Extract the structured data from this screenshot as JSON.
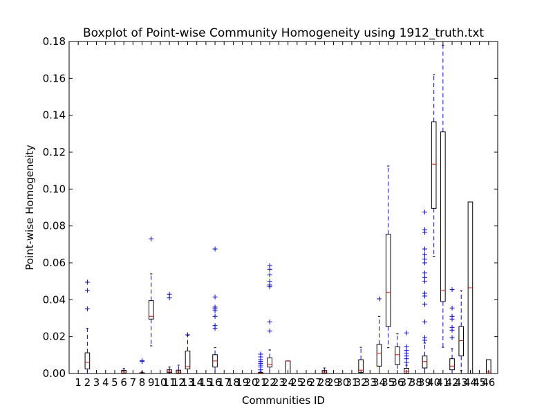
{
  "chart_data": {
    "type": "boxplot",
    "title": "Boxplot of Point-wise Community Homogeneity using 1912_truth.txt",
    "xlabel": "Communities ID",
    "ylabel": "Point-wise Homogeneity",
    "ylim": [
      0,
      0.18
    ],
    "yticks": [
      "0.00",
      "0.02",
      "0.04",
      "0.06",
      "0.08",
      "0.10",
      "0.12",
      "0.14",
      "0.16",
      "0.18"
    ],
    "categories": [
      "1",
      "2",
      "3",
      "4",
      "5",
      "6",
      "7",
      "8",
      "9",
      "10",
      "11",
      "12",
      "13",
      "14",
      "15",
      "16",
      "17",
      "18",
      "19",
      "20",
      "21",
      "22",
      "23",
      "24",
      "25",
      "26",
      "27",
      "28",
      "29",
      "30",
      "31",
      "32",
      "33",
      "34",
      "35",
      "36",
      "37",
      "38",
      "39",
      "40",
      "41",
      "42",
      "43",
      "44",
      "45",
      "46"
    ],
    "box_color": "#000000",
    "median_color": "#ff0000",
    "whisker_color": "#0000ff",
    "flier_color": "#0000ff",
    "boxes": [
      {
        "id": "1",
        "whislo": 0,
        "q1": 0,
        "med": 0,
        "q3": 0,
        "whishi": 0,
        "fliers": []
      },
      {
        "id": "2",
        "whislo": 0,
        "q1": 0.0025,
        "med": 0.006,
        "q3": 0.0112,
        "whishi": 0.0245,
        "fliers": [
          0.035,
          0.045,
          0.0495
        ]
      },
      {
        "id": "3",
        "whislo": 0,
        "q1": 0,
        "med": 0,
        "q3": 0,
        "whishi": 0,
        "fliers": []
      },
      {
        "id": "4",
        "whislo": 0,
        "q1": 0,
        "med": 0,
        "q3": 0,
        "whishi": 0,
        "fliers": []
      },
      {
        "id": "5",
        "whislo": 0,
        "q1": 0,
        "med": 0,
        "q3": 0,
        "whishi": 0,
        "fliers": []
      },
      {
        "id": "6",
        "whislo": 0,
        "q1": 0.0002,
        "med": 0.0008,
        "q3": 0.0017,
        "whishi": 0.0027,
        "fliers": []
      },
      {
        "id": "7",
        "whislo": 0,
        "q1": 0,
        "med": 0,
        "q3": 0,
        "whishi": 0,
        "fliers": []
      },
      {
        "id": "8",
        "whislo": 0,
        "q1": 0,
        "med": 0.0001,
        "q3": 0.0004,
        "whishi": 0.0008,
        "fliers": [
          0.0065,
          0.007
        ]
      },
      {
        "id": "9",
        "whislo": 0.015,
        "q1": 0.0295,
        "med": 0.031,
        "q3": 0.0395,
        "whishi": 0.054,
        "fliers": [
          0.073
        ]
      },
      {
        "id": "10",
        "whislo": 0,
        "q1": 0,
        "med": 0,
        "q3": 0,
        "whishi": 0,
        "fliers": []
      },
      {
        "id": "11",
        "whislo": 0,
        "q1": 0.0005,
        "med": 0.0012,
        "q3": 0.002,
        "whishi": 0.0035,
        "fliers": [
          0.041,
          0.043
        ]
      },
      {
        "id": "12",
        "whislo": 0,
        "q1": 0.0002,
        "med": 0.0008,
        "q3": 0.0018,
        "whishi": 0.0045,
        "fliers": []
      },
      {
        "id": "13",
        "whislo": 0,
        "q1": 0.0025,
        "med": 0.0038,
        "q3": 0.0122,
        "whishi": 0.0205,
        "fliers": [
          0.021
        ]
      },
      {
        "id": "14",
        "whislo": 0,
        "q1": 0,
        "med": 0,
        "q3": 0,
        "whishi": 0,
        "fliers": []
      },
      {
        "id": "15",
        "whislo": 0,
        "q1": 0,
        "med": 0,
        "q3": 0,
        "whishi": 0,
        "fliers": []
      },
      {
        "id": "16",
        "whislo": 0,
        "q1": 0.0035,
        "med": 0.0068,
        "q3": 0.0102,
        "whishi": 0.014,
        "fliers": [
          0.0245,
          0.026,
          0.031,
          0.034,
          0.035,
          0.036,
          0.0415,
          0.0675
        ]
      },
      {
        "id": "17",
        "whislo": 0,
        "q1": 0,
        "med": 0,
        "q3": 0,
        "whishi": 0,
        "fliers": []
      },
      {
        "id": "18",
        "whislo": 0,
        "q1": 0,
        "med": 0,
        "q3": 0,
        "whishi": 0,
        "fliers": []
      },
      {
        "id": "19",
        "whislo": 0,
        "q1": 0,
        "med": 0,
        "q3": 0,
        "whishi": 0,
        "fliers": []
      },
      {
        "id": "20",
        "whislo": 0,
        "q1": 0,
        "med": 0,
        "q3": 0,
        "whishi": 0,
        "fliers": []
      },
      {
        "id": "21",
        "whislo": 0,
        "q1": 0,
        "med": 0.0002,
        "q3": 0.0006,
        "whishi": 0.0012,
        "fliers": [
          0.002,
          0.0035,
          0.0045,
          0.0055,
          0.0065,
          0.0075,
          0.009,
          0.0105
        ]
      },
      {
        "id": "22",
        "whislo": 0,
        "q1": 0.0035,
        "med": 0.0048,
        "q3": 0.0085,
        "whishi": 0.0128,
        "fliers": [
          0.023,
          0.028,
          0.047,
          0.048,
          0.05,
          0.0535,
          0.0565,
          0.0585
        ]
      },
      {
        "id": "23",
        "whislo": 0,
        "q1": 0,
        "med": 0,
        "q3": 0,
        "whishi": 0,
        "fliers": []
      },
      {
        "id": "24",
        "whislo": 0,
        "q1": 0,
        "med": 0.0068,
        "q3": 0.0068,
        "whishi": 0.0068,
        "fliers": []
      },
      {
        "id": "25",
        "whislo": 0,
        "q1": 0,
        "med": 0,
        "q3": 0,
        "whishi": 0,
        "fliers": []
      },
      {
        "id": "26",
        "whislo": 0,
        "q1": 0,
        "med": 0,
        "q3": 0,
        "whishi": 0,
        "fliers": []
      },
      {
        "id": "27",
        "whislo": 0,
        "q1": 0,
        "med": 0,
        "q3": 0,
        "whishi": 0,
        "fliers": []
      },
      {
        "id": "28",
        "whislo": 0,
        "q1": 0.0002,
        "med": 0.0008,
        "q3": 0.0016,
        "whishi": 0.003,
        "fliers": []
      },
      {
        "id": "29",
        "whislo": 0,
        "q1": 0,
        "med": 0,
        "q3": 0,
        "whishi": 0,
        "fliers": []
      },
      {
        "id": "30",
        "whislo": 0,
        "q1": 0,
        "med": 0,
        "q3": 0,
        "whishi": 0,
        "fliers": []
      },
      {
        "id": "31",
        "whislo": 0,
        "q1": 0,
        "med": 0,
        "q3": 0,
        "whishi": 0,
        "fliers": []
      },
      {
        "id": "32",
        "whislo": 0,
        "q1": 0.0005,
        "med": 0.0018,
        "q3": 0.0075,
        "whishi": 0.0142,
        "fliers": []
      },
      {
        "id": "33",
        "whislo": 0,
        "q1": 0,
        "med": 0,
        "q3": 0,
        "whishi": 0,
        "fliers": []
      },
      {
        "id": "34",
        "whislo": 0,
        "q1": 0.004,
        "med": 0.011,
        "q3": 0.0158,
        "whishi": 0.031,
        "fliers": [
          0.0405
        ]
      },
      {
        "id": "35",
        "whislo": 0.014,
        "q1": 0.0255,
        "med": 0.044,
        "q3": 0.0755,
        "whishi": 0.1125,
        "fliers": []
      },
      {
        "id": "36",
        "whislo": 0,
        "q1": 0.0048,
        "med": 0.0102,
        "q3": 0.0145,
        "whishi": 0.0215,
        "fliers": []
      },
      {
        "id": "37",
        "whislo": 0,
        "q1": 0.0002,
        "med": 0.0012,
        "q3": 0.0028,
        "whishi": 0.0045,
        "fliers": [
          0.006,
          0.008,
          0.0095,
          0.011,
          0.0125,
          0.0145,
          0.022
        ]
      },
      {
        "id": "38",
        "whislo": 0,
        "q1": 0,
        "med": 0,
        "q3": 0,
        "whishi": 0,
        "fliers": []
      },
      {
        "id": "39",
        "whislo": 0,
        "q1": 0.003,
        "med": 0.0065,
        "q3": 0.0095,
        "whishi": 0.0165,
        "fliers": [
          0.018,
          0.0195,
          0.028,
          0.0375,
          0.042,
          0.0435,
          0.05,
          0.052,
          0.0545,
          0.06,
          0.062,
          0.0645,
          0.0675,
          0.0765,
          0.078,
          0.0875
        ]
      },
      {
        "id": "40",
        "whislo": 0.0635,
        "q1": 0.0895,
        "med": 0.1135,
        "q3": 0.1365,
        "whishi": 0.162,
        "fliers": []
      },
      {
        "id": "41",
        "whislo": 0.0142,
        "q1": 0.039,
        "med": 0.045,
        "q3": 0.131,
        "whishi": 0.178,
        "fliers": []
      },
      {
        "id": "42",
        "whislo": 0,
        "q1": 0.002,
        "med": 0.004,
        "q3": 0.008,
        "whishi": 0.0135,
        "fliers": [
          0.0195,
          0.0235,
          0.025,
          0.0295,
          0.031,
          0.0355,
          0.0455
        ]
      },
      {
        "id": "43",
        "whislo": 0.0015,
        "q1": 0.0095,
        "med": 0.0178,
        "q3": 0.0255,
        "whishi": 0.0448,
        "fliers": []
      },
      {
        "id": "44",
        "whislo": 0,
        "q1": 0,
        "med": 0.0465,
        "q3": 0.093,
        "whishi": 0.093,
        "fliers": []
      },
      {
        "id": "45",
        "whislo": 0,
        "q1": 0,
        "med": 0,
        "q3": 0,
        "whishi": 0,
        "fliers": []
      },
      {
        "id": "46",
        "whislo": 0,
        "q1": 0,
        "med": 0.0008,
        "q3": 0.0075,
        "whishi": 0.0075,
        "fliers": []
      }
    ]
  }
}
